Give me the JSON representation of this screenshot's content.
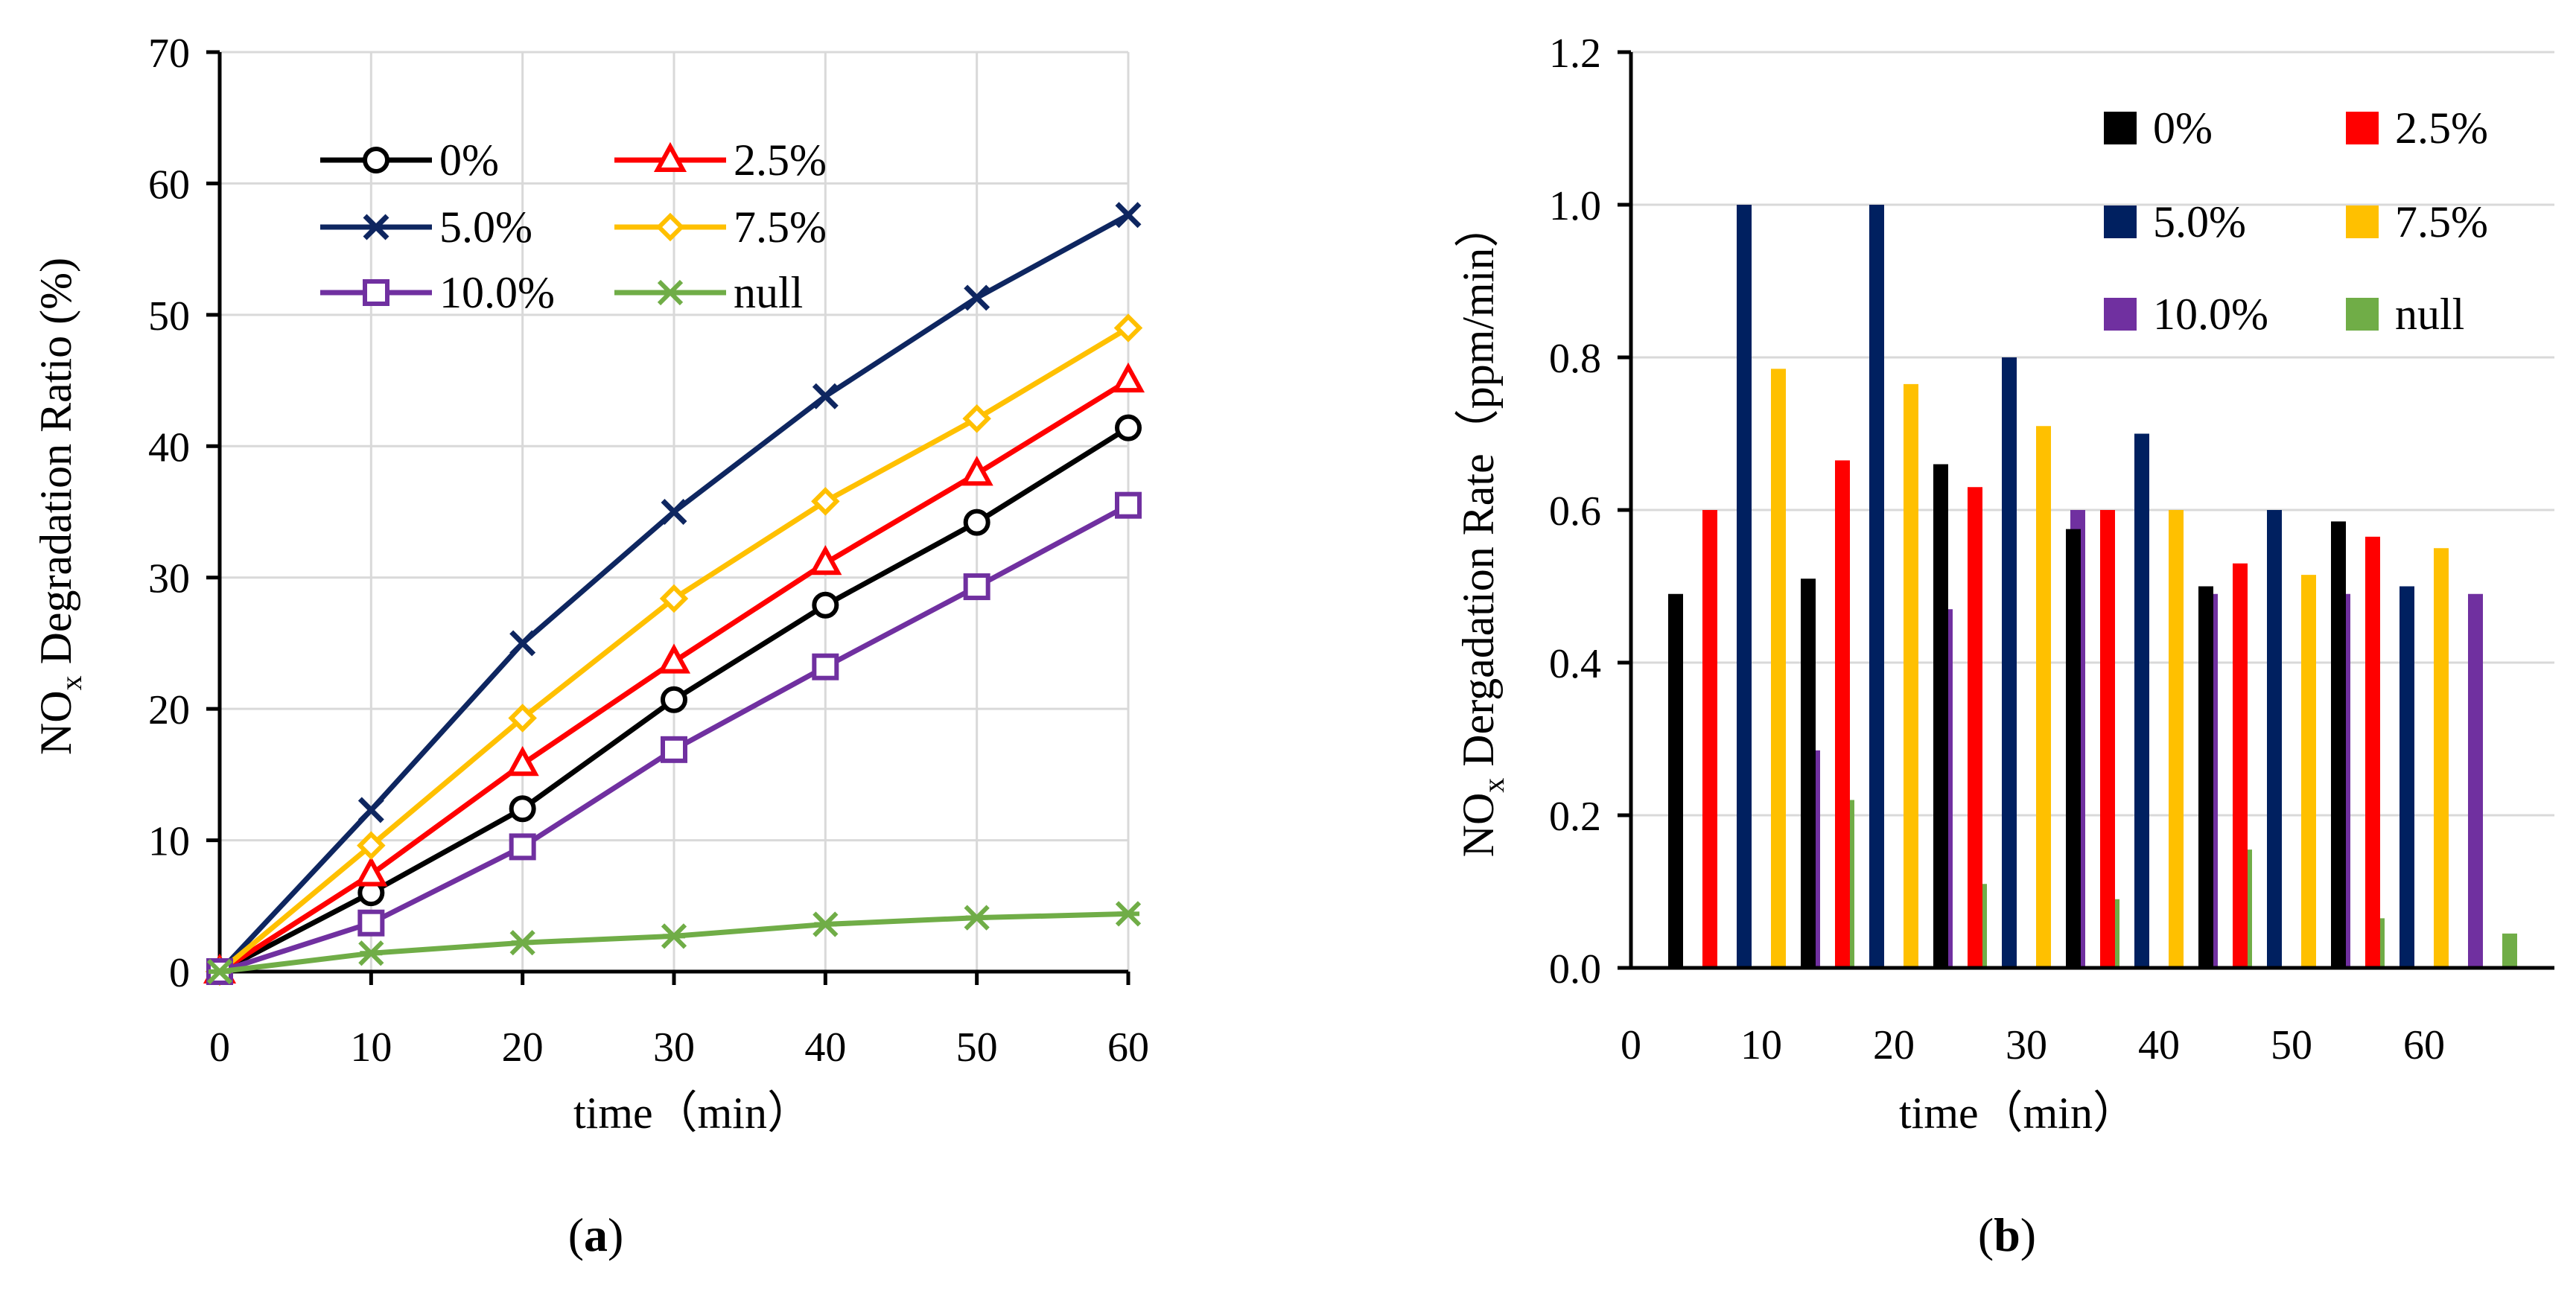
{
  "chart_data": [
    {
      "type": "line",
      "panel": "a",
      "caption_letter": "a",
      "x": [
        0,
        10,
        20,
        30,
        40,
        50,
        60
      ],
      "xlim": [
        0,
        60
      ],
      "ylim": [
        0,
        70
      ],
      "xticks": [
        "0",
        "10",
        "20",
        "30",
        "40",
        "50",
        "60"
      ],
      "yticks": [
        "0",
        "10",
        "20",
        "30",
        "40",
        "50",
        "60",
        "70"
      ],
      "xlabel": "time（min）",
      "ylabel_pre": "NO",
      "ylabel_sub": "x",
      "ylabel_post": " Degradation Ratio (%)",
      "legend_position": "top-left",
      "series": [
        {
          "name": "0%",
          "color": "#000000",
          "marker": "circle",
          "values": [
            0,
            6.0,
            12.4,
            20.7,
            27.9,
            34.2,
            41.4
          ]
        },
        {
          "name": "2.5%",
          "color": "#ff0000",
          "marker": "triangle",
          "values": [
            0,
            7.4,
            15.8,
            23.6,
            31.1,
            37.9,
            45.0
          ]
        },
        {
          "name": "5.0%",
          "color": "#0e2660",
          "marker": "x",
          "values": [
            0,
            12.3,
            25.0,
            35.0,
            43.8,
            51.3,
            57.6
          ]
        },
        {
          "name": "7.5%",
          "color": "#ffc000",
          "marker": "diamond",
          "values": [
            0,
            9.6,
            19.3,
            28.4,
            35.8,
            42.1,
            49.0
          ]
        },
        {
          "name": "10.0%",
          "color": "#7030a0",
          "marker": "square",
          "values": [
            0,
            3.7,
            9.5,
            16.9,
            23.2,
            29.3,
            35.5
          ]
        },
        {
          "name": "null",
          "color": "#70ad47",
          "marker": "asterisk",
          "values": [
            0,
            1.4,
            2.2,
            2.7,
            3.6,
            4.1,
            4.4
          ]
        }
      ]
    },
    {
      "type": "bar",
      "panel": "b",
      "caption_letter": "b",
      "categories": [
        "10",
        "20",
        "30",
        "40",
        "50",
        "60"
      ],
      "origin_tick": "0",
      "ylim": [
        0,
        1.2
      ],
      "yticks": [
        "0.0",
        "0.2",
        "0.4",
        "0.6",
        "0.8",
        "1.0",
        "1.2"
      ],
      "xlabel": "time（min）",
      "ylabel_pre": "NO",
      "ylabel_sub": "x",
      "ylabel_post": " Dergadation Rate（ppm/min）",
      "legend_position": "top-right",
      "series": [
        {
          "name": "0%",
          "color": "#000000",
          "values": [
            0.49,
            0.51,
            0.66,
            0.575,
            0.5,
            0.585
          ]
        },
        {
          "name": "2.5%",
          "color": "#ff0000",
          "values": [
            0.6,
            0.665,
            0.63,
            0.6,
            0.53,
            0.565
          ]
        },
        {
          "name": "5.0%",
          "color": "#002060",
          "values": [
            1.0,
            1.0,
            0.8,
            0.7,
            0.6,
            0.5
          ]
        },
        {
          "name": "7.5%",
          "color": "#ffc000",
          "values": [
            0.785,
            0.765,
            0.71,
            0.6,
            0.515,
            0.55
          ]
        },
        {
          "name": "10.0%",
          "color": "#7030a0",
          "values": [
            0.285,
            0.47,
            0.6,
            0.49,
            0.49,
            0.49
          ]
        },
        {
          "name": "null",
          "color": "#70ad47",
          "values": [
            0.22,
            0.11,
            0.09,
            0.155,
            0.065,
            0.045
          ]
        }
      ]
    }
  ]
}
